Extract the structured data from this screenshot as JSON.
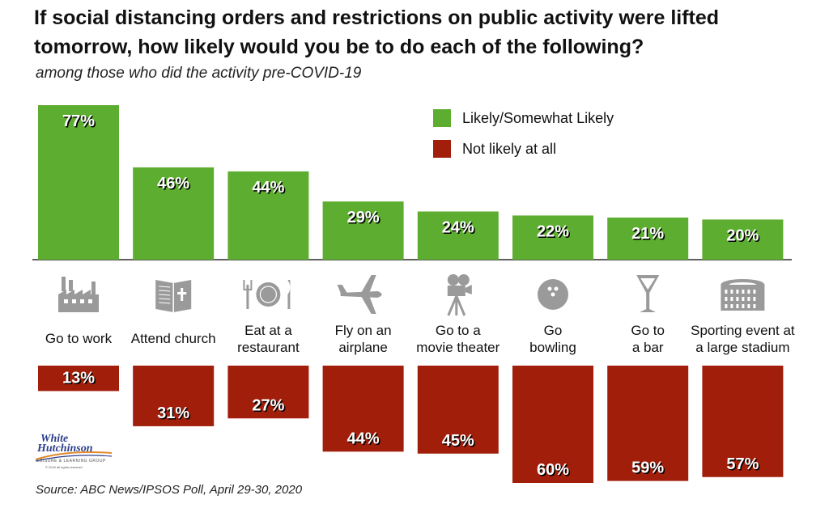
{
  "title": "If social distancing orders and restrictions on public activity were lifted tomorrow, how likely would you be to do each of the following?",
  "subtitle": "among those who did the activity pre-COVID-19",
  "source": "Source: ABC News/IPSOS Poll, April 29-30, 2020",
  "logo": {
    "line1": "White",
    "line2": "Hutchinson",
    "tagline": "LEISURE & LEARNING GROUP",
    "copyright": "© 2020 all rights reserved"
  },
  "colors": {
    "likely": "#5dad30",
    "not_likely": "#a11e0b"
  },
  "chart_data": {
    "type": "bar",
    "categories": [
      [
        "Go to work"
      ],
      [
        "Attend church"
      ],
      [
        "Eat at a",
        "restaurant"
      ],
      [
        "Fly on an",
        "airplane"
      ],
      [
        "Go to a",
        "movie theater"
      ],
      [
        "Go",
        "bowling"
      ],
      [
        "Go to",
        "a bar"
      ],
      [
        "Sporting event at",
        "a large stadium"
      ]
    ],
    "icons": [
      "factory-icon",
      "bible-icon",
      "plate-cutlery-icon",
      "airplane-icon",
      "movie-camera-icon",
      "bowling-ball-icon",
      "cocktail-glass-icon",
      "stadium-icon"
    ],
    "series": [
      {
        "name": "Likely/Somewhat Likely",
        "values": [
          77,
          46,
          44,
          29,
          24,
          22,
          21,
          20
        ],
        "labels": [
          "77%",
          "46%",
          "44%",
          "29%",
          "24%",
          "22%",
          "21%",
          "20%"
        ],
        "direction": "up"
      },
      {
        "name": "Not likely at all",
        "values": [
          13,
          31,
          27,
          44,
          45,
          60,
          59,
          57
        ],
        "labels": [
          "13%",
          "31%",
          "27%",
          "44%",
          "45%",
          "60%",
          "59%",
          "57%"
        ],
        "direction": "down"
      }
    ],
    "legend_position": "top-right",
    "grid": false
  }
}
